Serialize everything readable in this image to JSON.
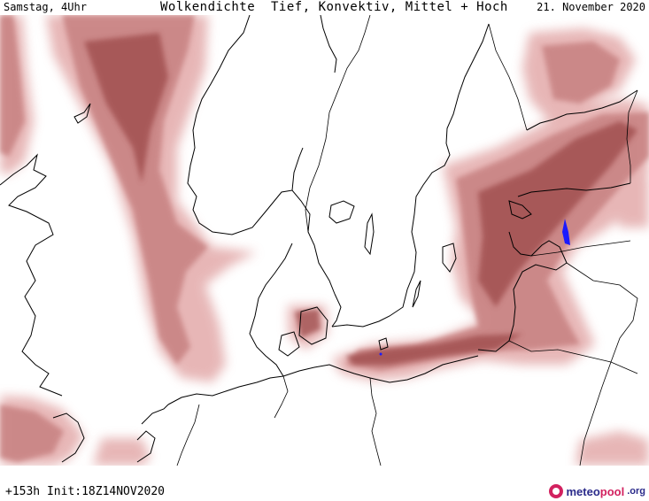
{
  "header": {
    "day_time": "Samstag, 4Uhr",
    "title": "Wolkendichte  Tief, Konvektiv, Mittel + Hoch",
    "date": "21. November 2020"
  },
  "footer": {
    "run_info": "+153h Init:18Z14NOV2020",
    "logo_name_start": "meteo",
    "logo_name_accent": "pool",
    "logo_tld": ".org"
  },
  "map": {
    "variable": "cloud cover (low, convective, mid + high)",
    "colors": {
      "cloud_light": "#e3aaaa",
      "cloud_mid": "#c98484",
      "cloud_dark": "#9c4848",
      "coastline": "#000000",
      "precip": "#1a1aff"
    },
    "icons": [
      "meteopool-logo-icon"
    ]
  }
}
